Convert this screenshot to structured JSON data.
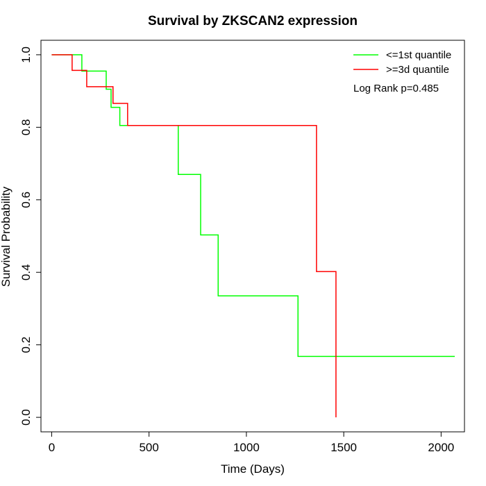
{
  "chart_data": {
    "type": "line",
    "step": true,
    "title": "Survival by ZKSCAN2 expression",
    "xlabel": "Time (Days)",
    "ylabel": "Survival Probability",
    "xlim": [
      -55,
      2120
    ],
    "ylim": [
      -0.04,
      1.04
    ],
    "x_ticks": [
      0,
      500,
      1000,
      1500,
      2000
    ],
    "y_ticks": [
      0.0,
      0.2,
      0.4,
      0.6,
      0.8,
      1.0
    ],
    "x_tick_labels": [
      "0",
      "500",
      "1000",
      "1500",
      "2000"
    ],
    "y_tick_labels": [
      "0.0",
      "0.2",
      "0.4",
      "0.6",
      "0.8",
      "1.0"
    ],
    "grid": false,
    "legend_position": "top-right",
    "annotation": "Log Rank p=0.485",
    "series": [
      {
        "name": "<=1st quantile",
        "color": "#00ff00",
        "x": [
          0,
          155,
          280,
          305,
          350,
          650,
          765,
          855,
          1265,
          2070
        ],
        "y": [
          1.0,
          0.955,
          0.905,
          0.855,
          0.805,
          0.67,
          0.503,
          0.335,
          0.168,
          0.168
        ]
      },
      {
        "name": ">=3d quantile",
        "color": "#ff0000",
        "x": [
          0,
          105,
          180,
          315,
          345,
          390,
          1360,
          1460,
          1460
        ],
        "y": [
          1.0,
          0.957,
          0.912,
          0.866,
          0.866,
          0.805,
          0.402,
          0.0,
          0.0
        ]
      }
    ]
  }
}
